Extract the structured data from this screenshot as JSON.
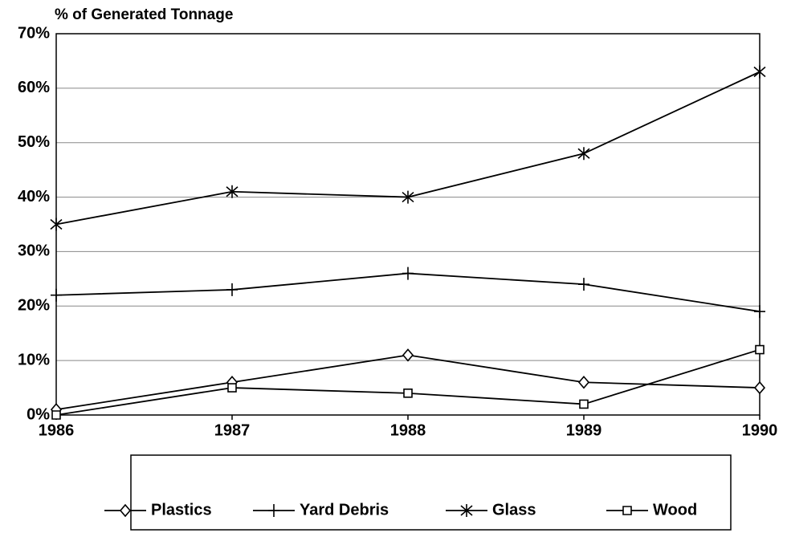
{
  "chart_data": {
    "type": "line",
    "y_label": "% of Generated Tonnage",
    "x": [
      1986,
      1987,
      1988,
      1989,
      1990
    ],
    "xlim": [
      1986,
      1990
    ],
    "xticks": [
      1986,
      1987,
      1988,
      1989,
      1990
    ],
    "ylim": [
      0,
      70
    ],
    "yticks": [
      {
        "value": 0,
        "label": "0%"
      },
      {
        "value": 10,
        "label": "10%"
      },
      {
        "value": 20,
        "label": "20%"
      },
      {
        "value": 30,
        "label": "30%"
      },
      {
        "value": 40,
        "label": "40%"
      },
      {
        "value": 50,
        "label": "50%"
      },
      {
        "value": 60,
        "label": "60%"
      },
      {
        "value": 70,
        "label": "70%"
      }
    ],
    "grid": true,
    "legend": "bottom",
    "series": [
      {
        "name": "Plastics",
        "color": "#000000",
        "marker": "diamond",
        "values": [
          1,
          6,
          11,
          6,
          5
        ]
      },
      {
        "name": "Yard Debris",
        "color": "#000000",
        "marker": "plus",
        "values": [
          22,
          23,
          26,
          24,
          19
        ]
      },
      {
        "name": "Glass",
        "color": "#000000",
        "marker": "asterisk",
        "values": [
          35,
          41,
          40,
          48,
          63
        ]
      },
      {
        "name": "Wood",
        "color": "#000000",
        "marker": "square",
        "values": [
          0,
          5,
          4,
          2,
          12
        ]
      }
    ]
  }
}
